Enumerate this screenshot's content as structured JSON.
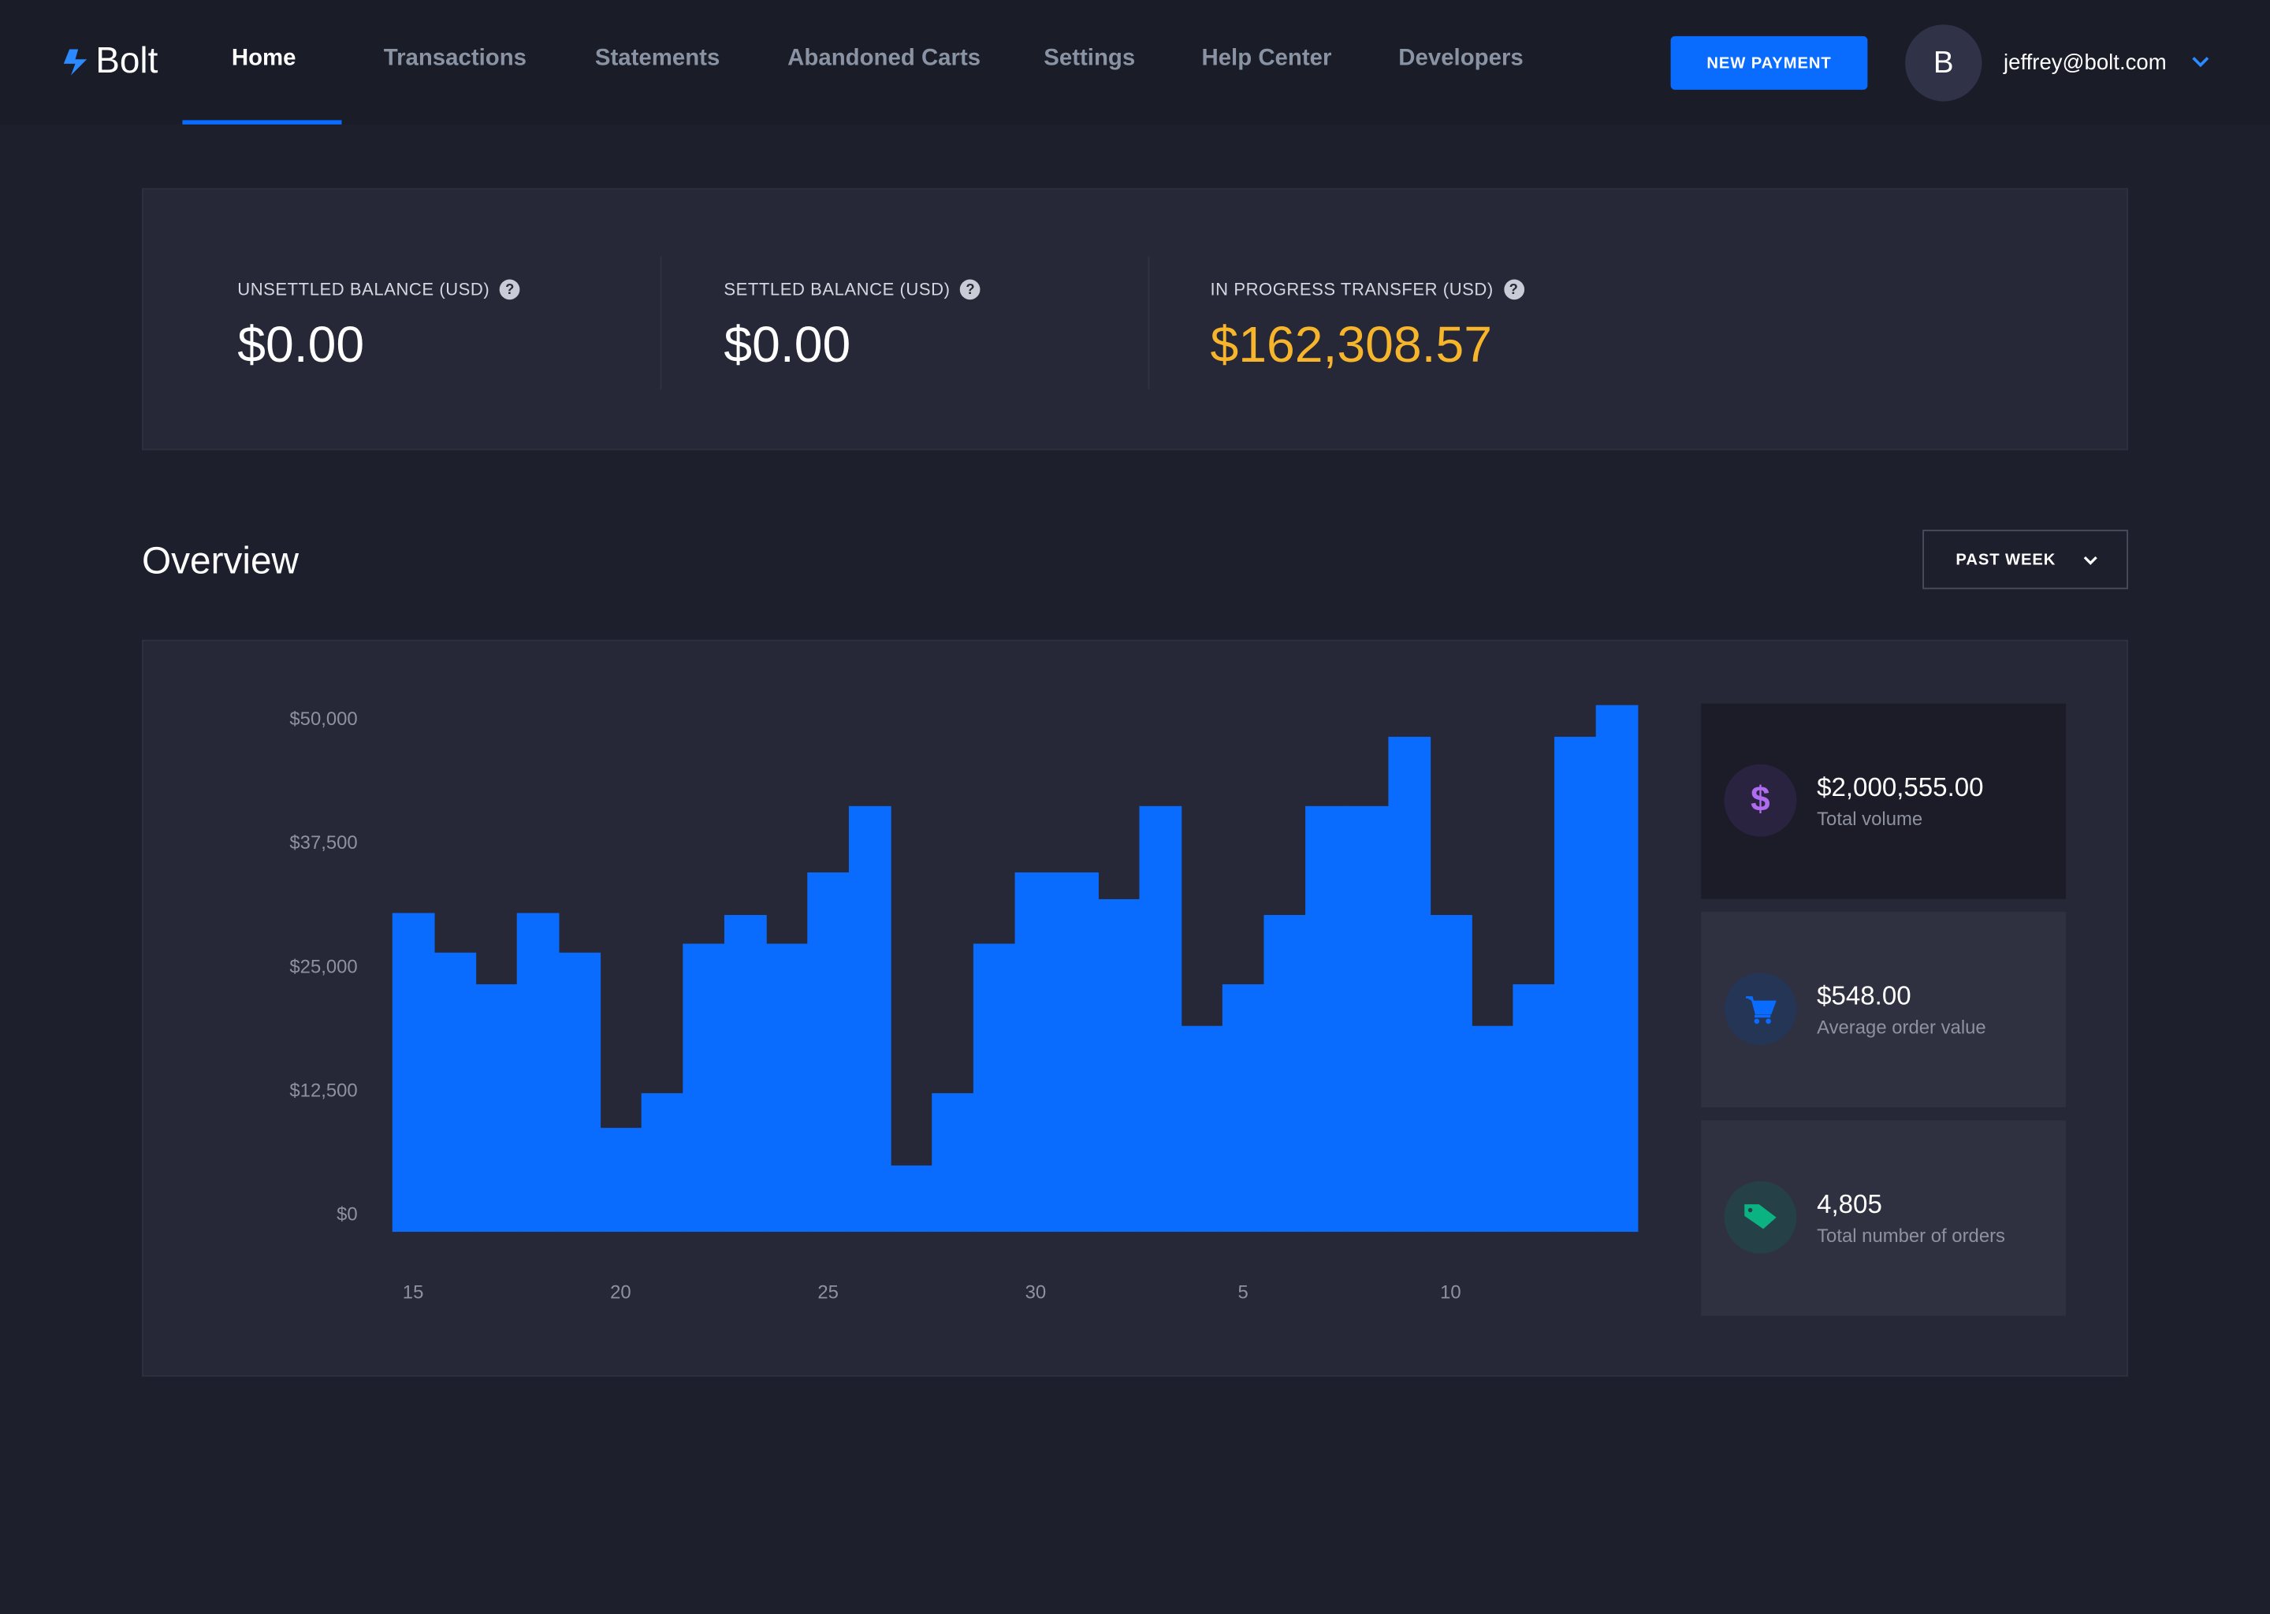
{
  "app": {
    "name": "Bolt"
  },
  "nav": {
    "items": [
      "Home",
      "Transactions",
      "Statements",
      "Abandoned Carts",
      "Settings",
      "Help Center",
      "Developers"
    ],
    "active": "Home",
    "new_payment": "NEW PAYMENT",
    "avatar_letter": "B",
    "user_email": "jeffrey@bolt.com"
  },
  "balances": [
    {
      "label": "UNSETTLED BALANCE (USD)",
      "value": "$0.00"
    },
    {
      "label": "SETTLED BALANCE (USD)",
      "value": "$0.00"
    },
    {
      "label": "IN PROGRESS TRANSFER (USD)",
      "value": "$162,308.57"
    }
  ],
  "overview": {
    "title": "Overview",
    "period": "PAST WEEK"
  },
  "stats": [
    {
      "value": "$2,000,555.00",
      "label": "Total volume",
      "icon": "dollar-icon",
      "color": "#b06cf0"
    },
    {
      "value": "$548.00",
      "label": "Average order value",
      "icon": "cart-icon",
      "color": "#0a6cff"
    },
    {
      "value": "4,805",
      "label": "Total number of orders",
      "icon": "tag-icon",
      "color": "#0ab381"
    }
  ],
  "colors": {
    "accent": "#0a6cff",
    "transfer": "#f7b52c"
  },
  "chart_data": {
    "type": "bar",
    "categories": [
      "15",
      "16",
      "17",
      "18",
      "19",
      "20",
      "21",
      "22",
      "23",
      "24",
      "25",
      "26",
      "27",
      "28",
      "29",
      "30",
      "1",
      "2",
      "3",
      "4",
      "5",
      "6",
      "7",
      "8",
      "9",
      "10",
      "11",
      "12",
      "13",
      "14"
    ],
    "values": [
      32200,
      28200,
      25000,
      32200,
      28200,
      10500,
      14000,
      29100,
      32000,
      29100,
      36300,
      43000,
      6700,
      14000,
      29100,
      36300,
      36300,
      33600,
      43000,
      20800,
      25000,
      32000,
      43000,
      43000,
      50000,
      32000,
      20800,
      25000,
      50000,
      53200
    ],
    "x_tick_labels": [
      "15",
      "20",
      "25",
      "30",
      "5",
      "10"
    ],
    "y_tick_labels": [
      "$50,000",
      "$37,500",
      "$25,000",
      "$12,500",
      "$0"
    ],
    "y_ticks": [
      50000,
      37500,
      25000,
      12500,
      0
    ],
    "ylim": [
      0,
      53200
    ],
    "grid": false,
    "title": "",
    "xlabel": "",
    "ylabel": ""
  }
}
